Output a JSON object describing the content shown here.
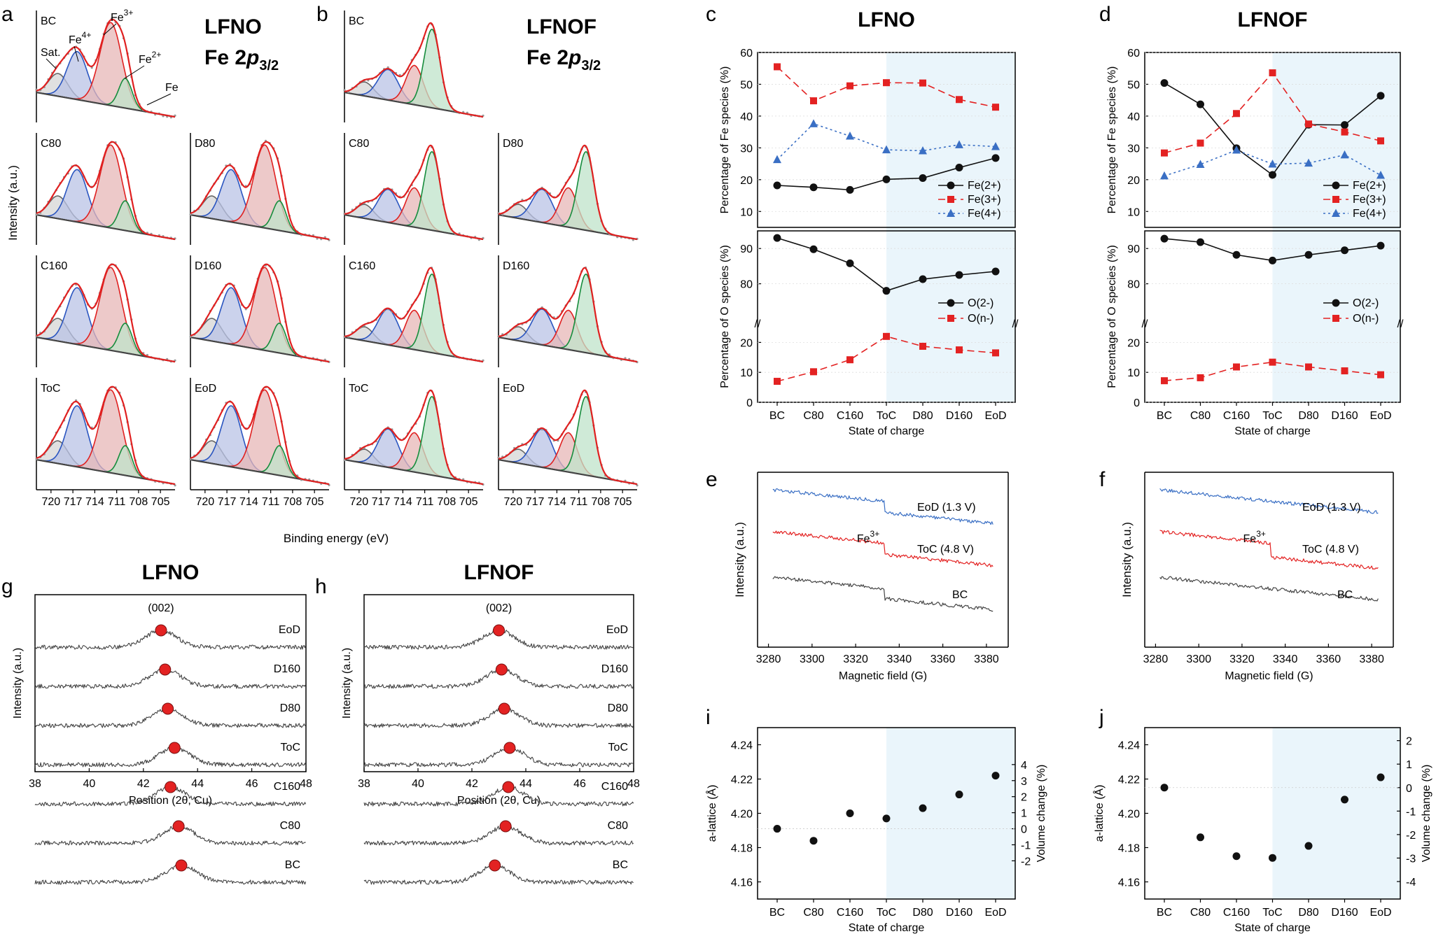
{
  "colors": {
    "fe2": "#111111",
    "fe3": "#e32222",
    "fe4": "#3a6fc4",
    "grey": "#444444",
    "shade": "#eaf5fb",
    "xps_total": "#e02020",
    "xps_red_fill": "#e7b7b7",
    "xps_blue": "#2a55c0",
    "xps_blue_fill": "#b9c3e6",
    "xps_green": "#168c3c",
    "xps_green_fill": "#bfe3c9"
  },
  "panel_labels": [
    "a",
    "b",
    "c",
    "d",
    "e",
    "f",
    "g",
    "h",
    "i",
    "j"
  ],
  "xps": {
    "titles": [
      {
        "main": "LFNO",
        "sub_prefix": "Fe 2",
        "sub_italic": "p",
        "sub_sub": "3/2"
      },
      {
        "main": "LFNOF",
        "sub_prefix": "Fe 2",
        "sub_italic": "p",
        "sub_sub": "3/2"
      }
    ],
    "ylabel": "Intensity (a.u.)",
    "xlabel": "Binding energy (eV)",
    "xticks": [
      "720",
      "717",
      "714",
      "711",
      "708",
      "705"
    ],
    "xrange": [
      722,
      703
    ],
    "annotations": [
      "Sat.",
      "Fe4+",
      "Fe3+",
      "Fe2+",
      "Fe"
    ],
    "annot_parts": [
      {
        "base": "Sat.",
        "sup": ""
      },
      {
        "base": "Fe",
        "sup": "4+"
      },
      {
        "base": "Fe",
        "sup": "3+"
      },
      {
        "base": "Fe",
        "sup": "2+"
      },
      {
        "base": "Fe",
        "sup": ""
      }
    ],
    "lfno_left": [
      "BC",
      "C80",
      "C160",
      "ToC"
    ],
    "lfno_right": [
      "D80",
      "D160",
      "EoD"
    ],
    "lfnof_left": [
      "BC",
      "C80",
      "C160",
      "ToC"
    ],
    "lfnof_right": [
      "D80",
      "D160",
      "EoD"
    ]
  },
  "chart_data": [
    {
      "panel": "c",
      "type": "line",
      "title": "LFNO",
      "categories": [
        "BC",
        "C80",
        "C160",
        "ToC",
        "D80",
        "D160",
        "EoD"
      ],
      "xlabel": "State of charge",
      "top": {
        "ylabel": "Percentage of Fe species (%)",
        "ylim": [
          5,
          60
        ],
        "yticks": [
          10,
          20,
          30,
          40,
          50,
          60
        ],
        "series": [
          {
            "name": "Fe(2+)",
            "values": [
              18.2,
              17.6,
              16.8,
              20.1,
              20.5,
              23.8,
              26.8
            ],
            "style": "solid",
            "marker": "circle"
          },
          {
            "name": "Fe(3+)",
            "values": [
              55.5,
              44.8,
              49.5,
              50.5,
              50.4,
              45.2,
              42.8
            ],
            "style": "dashed",
            "marker": "square"
          },
          {
            "name": "Fe(4+)",
            "values": [
              26.3,
              37.6,
              33.7,
              29.4,
              29.1,
              31.0,
              30.4
            ],
            "style": "dotted",
            "marker": "triangle"
          }
        ]
      },
      "bottom": {
        "ylabel": "Percentage of O species (%)",
        "ylim_low": [
          0,
          25
        ],
        "ylim_high": [
          70,
          95
        ],
        "yticks": [
          0,
          10,
          20,
          80,
          90
        ],
        "break_label": "//",
        "series": [
          {
            "name": "O(2-)",
            "values": [
              93.0,
              89.8,
              85.8,
              78.0,
              81.3,
              82.5,
              83.5
            ],
            "style": "solid",
            "marker": "circle"
          },
          {
            "name": "O(n-)",
            "values": [
              7.0,
              10.2,
              14.2,
              22.0,
              18.7,
              17.5,
              16.5
            ],
            "style": "dashed",
            "marker": "square"
          }
        ]
      },
      "legend_position": "right"
    },
    {
      "panel": "d",
      "type": "line",
      "title": "LFNOF",
      "categories": [
        "BC",
        "C80",
        "C160",
        "ToC",
        "D80",
        "D160",
        "EoD"
      ],
      "xlabel": "State of charge",
      "top": {
        "ylabel": "Percentage of Fe species (%)",
        "ylim": [
          5,
          60
        ],
        "yticks": [
          10,
          20,
          30,
          40,
          50,
          60
        ],
        "series": [
          {
            "name": "Fe(2+)",
            "values": [
              50.4,
              43.7,
              29.9,
              21.5,
              37.3,
              37.2,
              46.4
            ],
            "style": "solid",
            "marker": "circle"
          },
          {
            "name": "Fe(3+)",
            "values": [
              28.4,
              31.5,
              40.8,
              53.6,
              37.5,
              35.0,
              32.2
            ],
            "style": "dashed",
            "marker": "square"
          },
          {
            "name": "Fe(4+)",
            "values": [
              21.2,
              24.8,
              29.3,
              24.9,
              25.2,
              27.8,
              21.4
            ],
            "style": "dotted",
            "marker": "triangle"
          }
        ]
      },
      "bottom": {
        "ylabel": "Percentage of O species (%)",
        "ylim_low": [
          0,
          25
        ],
        "ylim_high": [
          70,
          95
        ],
        "yticks": [
          0,
          10,
          20,
          80,
          90
        ],
        "break_label": "//",
        "series": [
          {
            "name": "O(2-)",
            "values": [
              92.8,
              91.8,
              88.2,
              86.6,
              88.2,
              89.5,
              90.8
            ],
            "style": "solid",
            "marker": "circle"
          },
          {
            "name": "O(n-)",
            "values": [
              7.2,
              8.2,
              11.8,
              13.4,
              11.8,
              10.5,
              9.2
            ],
            "style": "dashed",
            "marker": "square"
          }
        ]
      },
      "legend_position": "right"
    },
    {
      "panel": "e",
      "type": "line",
      "xlabel": "Magnetic field (G)",
      "ylabel": "Intensity (a.u.)",
      "xlim": [
        3275,
        3390
      ],
      "xticks": [
        3280,
        3300,
        3320,
        3340,
        3360,
        3380
      ],
      "peak_label": "Fe",
      "peak_label_sup": "3+",
      "series": [
        {
          "name": "EoD (1.3 V)",
          "color": "#3a6fc4",
          "step": 16
        },
        {
          "name": "ToC (4.8 V)",
          "color": "#e32222",
          "step": 16
        },
        {
          "name": "BC",
          "color": "#444444",
          "step": 14
        }
      ]
    },
    {
      "panel": "f",
      "type": "line",
      "xlabel": "Magnetic field (G)",
      "ylabel": "Intensity (a.u.)",
      "xlim": [
        3275,
        3390
      ],
      "xticks": [
        3280,
        3300,
        3320,
        3340,
        3360,
        3380
      ],
      "peak_label": "Fe",
      "peak_label_sup": "3+",
      "series": [
        {
          "name": "EoD (1.3 V)",
          "color": "#3a6fc4",
          "step": 0
        },
        {
          "name": "ToC (4.8 V)",
          "color": "#e32222",
          "step": 20
        },
        {
          "name": "BC",
          "color": "#444444",
          "step": 0
        }
      ]
    },
    {
      "panel": "g",
      "type": "line",
      "title": "LFNO",
      "xlabel": "Position (2θ, Cu)",
      "ylabel": "Intensity (a.u.)",
      "xlim": [
        38,
        48
      ],
      "xticks": [
        38,
        40,
        42,
        44,
        46,
        48
      ],
      "peak_label": "(002)",
      "series": [
        {
          "name": "EoD",
          "peak": 42.65
        },
        {
          "name": "D160",
          "peak": 42.8
        },
        {
          "name": "D80",
          "peak": 42.9
        },
        {
          "name": "ToC",
          "peak": 43.15
        },
        {
          "name": "C160",
          "peak": 43.0
        },
        {
          "name": "C80",
          "peak": 43.3
        },
        {
          "name": "BC",
          "peak": 43.4
        }
      ]
    },
    {
      "panel": "h",
      "type": "line",
      "title": "LFNOF",
      "xlabel": "Position (2θ, Cu)",
      "ylabel": "Intensity (a.u.)",
      "xlim": [
        38,
        48
      ],
      "xticks": [
        38,
        40,
        42,
        44,
        46,
        48
      ],
      "peak_label": "(002)",
      "series": [
        {
          "name": "EoD",
          "peak": 43.0
        },
        {
          "name": "D160",
          "peak": 43.1
        },
        {
          "name": "D80",
          "peak": 43.2
        },
        {
          "name": "ToC",
          "peak": 43.4
        },
        {
          "name": "C160",
          "peak": 43.35
        },
        {
          "name": "C80",
          "peak": 43.25
        },
        {
          "name": "BC",
          "peak": 42.85
        }
      ]
    },
    {
      "panel": "i",
      "type": "scatter",
      "categories": [
        "BC",
        "C80",
        "C160",
        "ToC",
        "D80",
        "D160",
        "EoD"
      ],
      "values": [
        4.191,
        4.184,
        4.2,
        4.197,
        4.203,
        4.211,
        4.222
      ],
      "xlabel": "State of charge",
      "ylabel": "a-lattice (Å)",
      "ylim": [
        4.15,
        4.25
      ],
      "yticks": [
        4.16,
        4.18,
        4.2,
        4.22,
        4.24
      ],
      "y2label": "Volume change (%)",
      "y2ticks": [
        -2,
        -1,
        0,
        1,
        2,
        3,
        4
      ],
      "y2zero": 4.191,
      "y2step": 0.00936
    },
    {
      "panel": "j",
      "type": "scatter",
      "categories": [
        "BC",
        "C80",
        "C160",
        "ToC",
        "D80",
        "D160",
        "EoD"
      ],
      "values": [
        4.215,
        4.186,
        4.175,
        4.174,
        4.181,
        4.208,
        4.221
      ],
      "xlabel": "State of charge",
      "ylabel": "a-lattice (Å)",
      "ylim": [
        4.15,
        4.25
      ],
      "yticks": [
        4.16,
        4.18,
        4.2,
        4.22,
        4.24
      ],
      "y2label": "Volume change (%)",
      "y2ticks": [
        -4,
        -3,
        -2,
        -1,
        0,
        1,
        2
      ],
      "y2zero": 4.215,
      "y2step": 0.0137
    }
  ]
}
